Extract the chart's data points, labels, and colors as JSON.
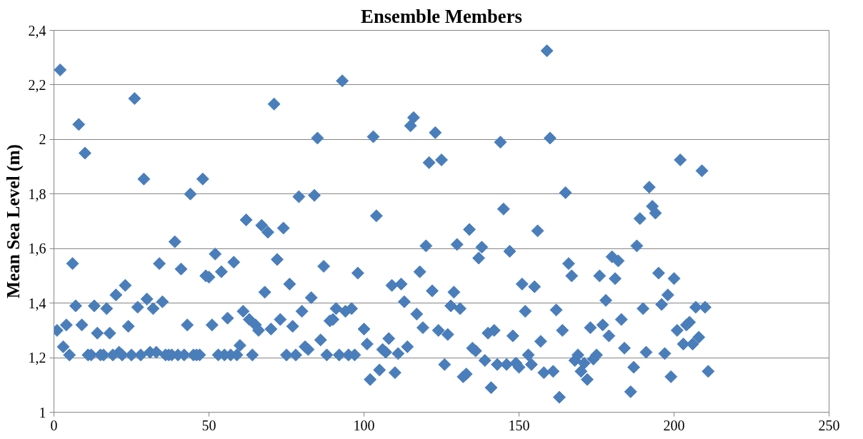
{
  "chart_data": {
    "type": "scatter",
    "title": "Ensemble Members",
    "ylabel": "Mean Sea Level (m)",
    "xlim": [
      0,
      250
    ],
    "xticks": [
      0,
      50,
      100,
      150,
      200,
      250
    ],
    "ylim": [
      1,
      2.4
    ],
    "yticks": [
      {
        "value": 1,
        "label": "1"
      },
      {
        "value": 1.2,
        "label": "1,2"
      },
      {
        "value": 1.4,
        "label": "1,4"
      },
      {
        "value": 1.6,
        "label": "1,6"
      },
      {
        "value": 1.8,
        "label": "1,8"
      },
      {
        "value": 2,
        "label": "2"
      },
      {
        "value": 2.2,
        "label": "2,2"
      },
      {
        "value": 2.4,
        "label": "2,4"
      }
    ],
    "grid": "y",
    "marker": "diamond",
    "series": [
      {
        "color": "#4a7ebb",
        "x": [
          1,
          2,
          3,
          4,
          5,
          6,
          7,
          8,
          9,
          10,
          11,
          12,
          13,
          14,
          15,
          16,
          17,
          18,
          19,
          20,
          21,
          22,
          23,
          24,
          25,
          26,
          27,
          28,
          29,
          30,
          31,
          32,
          33,
          34,
          35,
          36,
          37,
          38,
          39,
          40,
          41,
          42,
          43,
          44,
          45,
          46,
          47,
          48,
          49,
          50,
          51,
          52,
          53,
          54,
          55,
          56,
          57,
          58,
          59,
          60,
          61,
          62,
          63,
          64,
          65,
          66,
          67,
          68,
          69,
          70,
          71,
          72,
          73,
          74,
          75,
          76,
          77,
          78,
          79,
          80,
          81,
          82,
          83,
          84,
          85,
          86,
          87,
          88,
          89,
          90,
          91,
          92,
          93,
          94,
          95,
          96,
          97,
          98,
          100,
          101,
          102,
          103,
          104,
          105,
          106,
          107,
          108,
          109,
          110,
          111,
          112,
          113,
          114,
          115,
          116,
          117,
          118,
          119,
          120,
          121,
          122,
          123,
          124,
          125,
          126,
          127,
          128,
          129,
          130,
          131,
          132,
          133,
          134,
          135,
          136,
          137,
          138,
          139,
          140,
          141,
          142,
          143,
          144,
          145,
          146,
          147,
          148,
          149,
          150,
          151,
          152,
          153,
          154,
          155,
          156,
          157,
          158,
          159,
          160,
          161,
          162,
          163,
          164,
          165,
          166,
          167,
          168,
          169,
          170,
          171,
          172,
          173,
          174,
          175,
          176,
          177,
          178,
          179,
          180,
          181,
          182,
          183,
          184,
          186,
          187,
          188,
          189,
          190,
          191,
          192,
          193,
          194,
          195,
          196,
          197,
          198,
          199,
          200,
          201,
          202,
          203,
          204,
          205,
          206,
          207,
          208,
          209,
          210,
          211
        ],
        "values": [
          1.3,
          2.255,
          1.24,
          1.32,
          1.21,
          1.545,
          1.39,
          2.055,
          1.32,
          1.95,
          1.21,
          1.21,
          1.39,
          1.29,
          1.21,
          1.21,
          1.38,
          1.29,
          1.21,
          1.43,
          1.22,
          1.21,
          1.465,
          1.315,
          1.21,
          2.15,
          1.385,
          1.21,
          1.855,
          1.415,
          1.22,
          1.38,
          1.22,
          1.545,
          1.405,
          1.21,
          1.21,
          1.21,
          1.625,
          1.21,
          1.525,
          1.21,
          1.32,
          1.8,
          1.21,
          1.21,
          1.21,
          1.855,
          1.5,
          1.495,
          1.32,
          1.58,
          1.21,
          1.515,
          1.21,
          1.345,
          1.21,
          1.55,
          1.21,
          1.245,
          1.37,
          1.705,
          1.34,
          1.21,
          1.32,
          1.3,
          1.685,
          1.44,
          1.66,
          1.305,
          2.13,
          1.56,
          1.34,
          1.675,
          1.21,
          1.47,
          1.315,
          1.21,
          1.79,
          1.37,
          1.24,
          1.23,
          1.42,
          1.795,
          2.005,
          1.265,
          1.535,
          1.21,
          1.335,
          1.34,
          1.38,
          1.21,
          2.215,
          1.37,
          1.21,
          1.38,
          1.21,
          1.51,
          1.305,
          1.25,
          1.12,
          2.01,
          1.72,
          1.155,
          1.23,
          1.22,
          1.27,
          1.465,
          1.145,
          1.215,
          1.47,
          1.405,
          1.24,
          2.05,
          2.08,
          1.36,
          1.515,
          1.31,
          1.61,
          1.915,
          1.445,
          2.025,
          1.3,
          1.925,
          1.175,
          1.285,
          1.39,
          1.44,
          1.615,
          1.38,
          1.13,
          1.14,
          1.67,
          1.235,
          1.225,
          1.565,
          1.605,
          1.19,
          1.29,
          1.09,
          1.3,
          1.175,
          1.99,
          1.745,
          1.175,
          1.59,
          1.28,
          1.18,
          1.165,
          1.47,
          1.37,
          1.21,
          1.175,
          1.46,
          1.665,
          1.26,
          1.145,
          2.325,
          2.005,
          1.15,
          1.375,
          1.055,
          1.3,
          1.805,
          1.545,
          1.5,
          1.19,
          1.21,
          1.15,
          1.18,
          1.12,
          1.31,
          1.195,
          1.21,
          1.5,
          1.32,
          1.41,
          1.28,
          1.57,
          1.49,
          1.555,
          1.34,
          1.235,
          1.075,
          1.165,
          1.61,
          1.71,
          1.38,
          1.22,
          1.825,
          1.755,
          1.73,
          1.51,
          1.395,
          1.215,
          1.43,
          1.13,
          1.49,
          1.3,
          1.925,
          1.25,
          1.32,
          1.33,
          1.25,
          1.385,
          1.275,
          1.885,
          1.385,
          1.15
        ]
      }
    ]
  }
}
